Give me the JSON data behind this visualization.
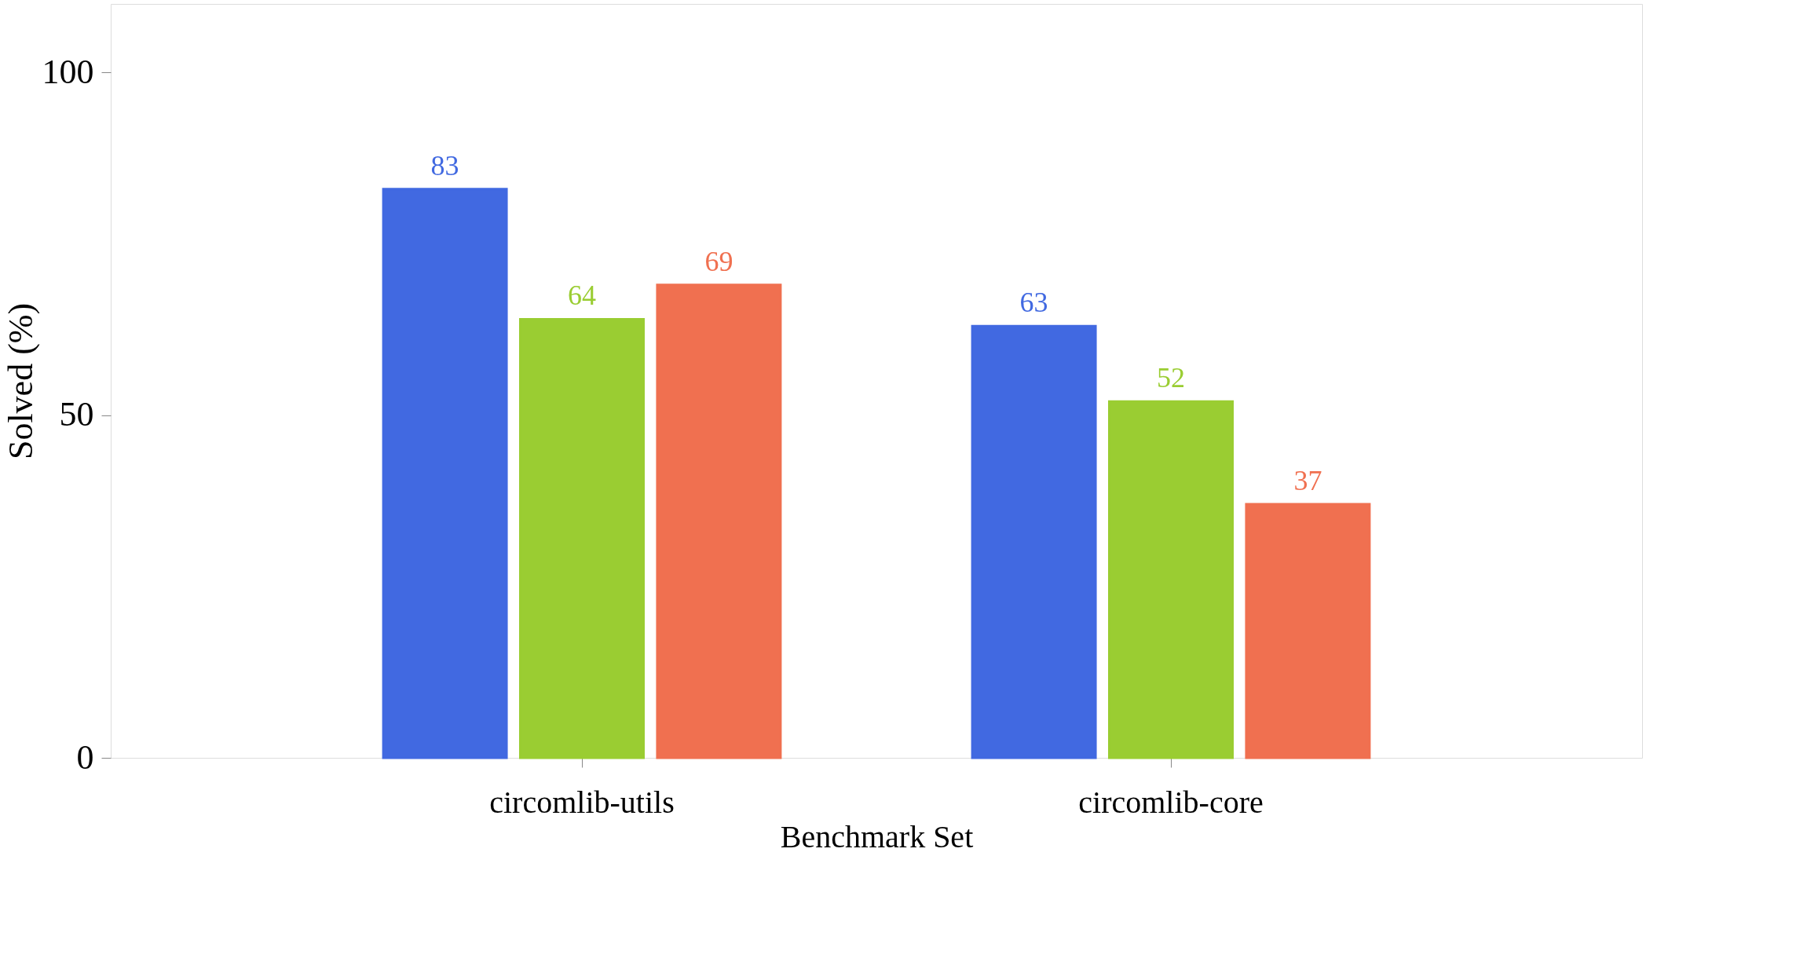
{
  "chart_data": {
    "type": "bar",
    "xlabel": "Benchmark Set",
    "ylabel": "Solved (%)",
    "categories": [
      "circomlib-utils",
      "circomlib-core"
    ],
    "series": [
      {
        "color": "#4169e1",
        "values": [
          83,
          63
        ]
      },
      {
        "color": "#9acd32",
        "values": [
          64,
          52
        ]
      },
      {
        "color": "#f07050",
        "values": [
          69,
          37
        ]
      }
    ],
    "ylim": [
      0,
      110
    ],
    "yticks": [
      0,
      50,
      100
    ],
    "data_labels": true,
    "grid": false,
    "legend": false
  }
}
